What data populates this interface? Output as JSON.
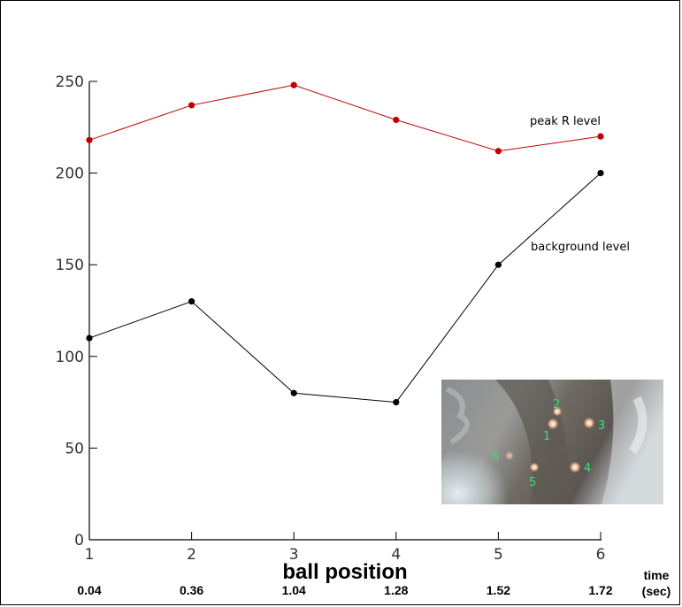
{
  "chart_data": {
    "type": "line",
    "title": "",
    "xlabel": "ball position",
    "ylabel": "",
    "x": [
      1,
      2,
      3,
      4,
      5,
      6
    ],
    "xlim": [
      1,
      6
    ],
    "ylim": [
      0,
      250
    ],
    "y_ticks": [
      0,
      50,
      100,
      150,
      200,
      250
    ],
    "grid": false,
    "series": [
      {
        "name": "peak R level",
        "values": [
          218,
          237,
          248,
          229,
          212,
          220
        ],
        "color": "#c00000"
      },
      {
        "name": "background level",
        "values": [
          110,
          130,
          80,
          75,
          150,
          200
        ],
        "color": "#000000"
      }
    ],
    "time_axis": {
      "label_top": "time",
      "label_bottom": "(sec)",
      "values": [
        "0.04",
        "0.36",
        "1.04",
        "1.28",
        "1.52",
        "1.72"
      ]
    },
    "inset": {
      "description_icon": "photo-inset",
      "markers": [
        {
          "label": "1"
        },
        {
          "label": "2"
        },
        {
          "label": "3"
        },
        {
          "label": "4"
        },
        {
          "label": "5"
        },
        {
          "label": "6"
        }
      ]
    }
  }
}
